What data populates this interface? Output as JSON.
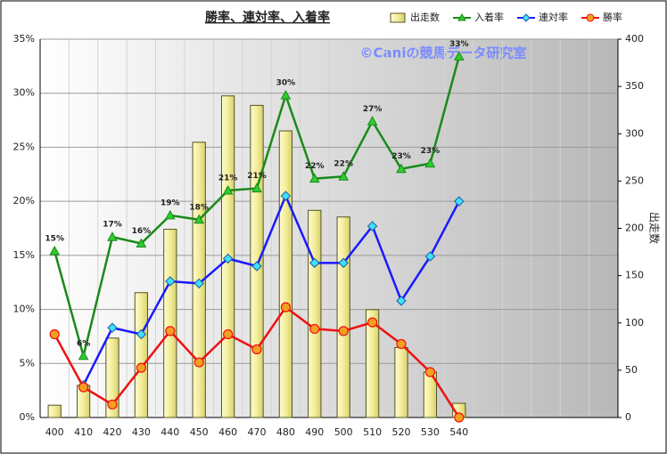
{
  "chart_data": {
    "type": "combo",
    "title": "勝率、連対率、入着率",
    "watermark": "©Caniの競馬データ研究室",
    "y2_label": "出走数",
    "categories": [
      "400",
      "410",
      "420",
      "430",
      "440",
      "450",
      "460",
      "470",
      "480",
      "490",
      "500",
      "510",
      "520",
      "530",
      "540",
      null,
      null,
      null,
      null,
      null
    ],
    "ylim": [
      0,
      35
    ],
    "yticks": [
      {
        "value": 0,
        "label": "0%"
      },
      {
        "value": 5,
        "label": "5%"
      },
      {
        "value": 10,
        "label": "10%"
      },
      {
        "value": 15,
        "label": "15%"
      },
      {
        "value": 20,
        "label": "20%"
      },
      {
        "value": 25,
        "label": "25%"
      },
      {
        "value": 30,
        "label": "30%"
      },
      {
        "value": 35,
        "label": "35%"
      }
    ],
    "y2lim": [
      0,
      400
    ],
    "y2ticks": [
      0,
      50,
      100,
      150,
      200,
      250,
      300,
      350,
      400
    ],
    "grid": true,
    "legend": "top",
    "series": [
      {
        "name": "出走数",
        "type": "bar",
        "axis": "y2",
        "color": "#f3ee9a",
        "values": [
          13,
          34,
          84,
          132,
          199,
          291,
          340,
          330,
          303,
          219,
          212,
          114,
          74,
          48,
          15,
          null,
          null,
          null,
          null,
          null
        ]
      },
      {
        "name": "入着率",
        "type": "line",
        "marker": "triangle",
        "color": "#1a8a1a",
        "values": [
          15.4,
          5.7,
          16.7,
          16.1,
          18.7,
          18.3,
          21.0,
          21.2,
          29.8,
          22.1,
          22.3,
          27.4,
          23.0,
          23.5,
          33.4,
          null,
          null,
          null,
          null,
          null
        ],
        "value_labels": [
          "15%",
          "6%",
          "17%",
          "16%",
          "19%",
          "18%",
          "21%",
          "21%",
          "30%",
          "22%",
          "22%",
          "27%",
          "23%",
          "23%",
          "33%",
          null,
          null,
          null,
          null,
          null
        ]
      },
      {
        "name": "連対率",
        "type": "line",
        "marker": "diamond",
        "color": "#1a1aff",
        "values": [
          null,
          3.0,
          8.3,
          7.7,
          12.6,
          12.4,
          14.7,
          14.0,
          20.5,
          14.3,
          14.3,
          17.7,
          10.8,
          14.9,
          20.0,
          null,
          null,
          null,
          null,
          null
        ]
      },
      {
        "name": "勝率",
        "type": "line",
        "marker": "circle",
        "color": "#ee1111",
        "values": [
          7.7,
          2.8,
          1.2,
          4.6,
          8.0,
          5.1,
          7.7,
          6.3,
          10.2,
          8.2,
          8.0,
          8.8,
          6.8,
          4.2,
          0,
          null,
          null,
          null,
          null,
          null
        ]
      }
    ]
  }
}
